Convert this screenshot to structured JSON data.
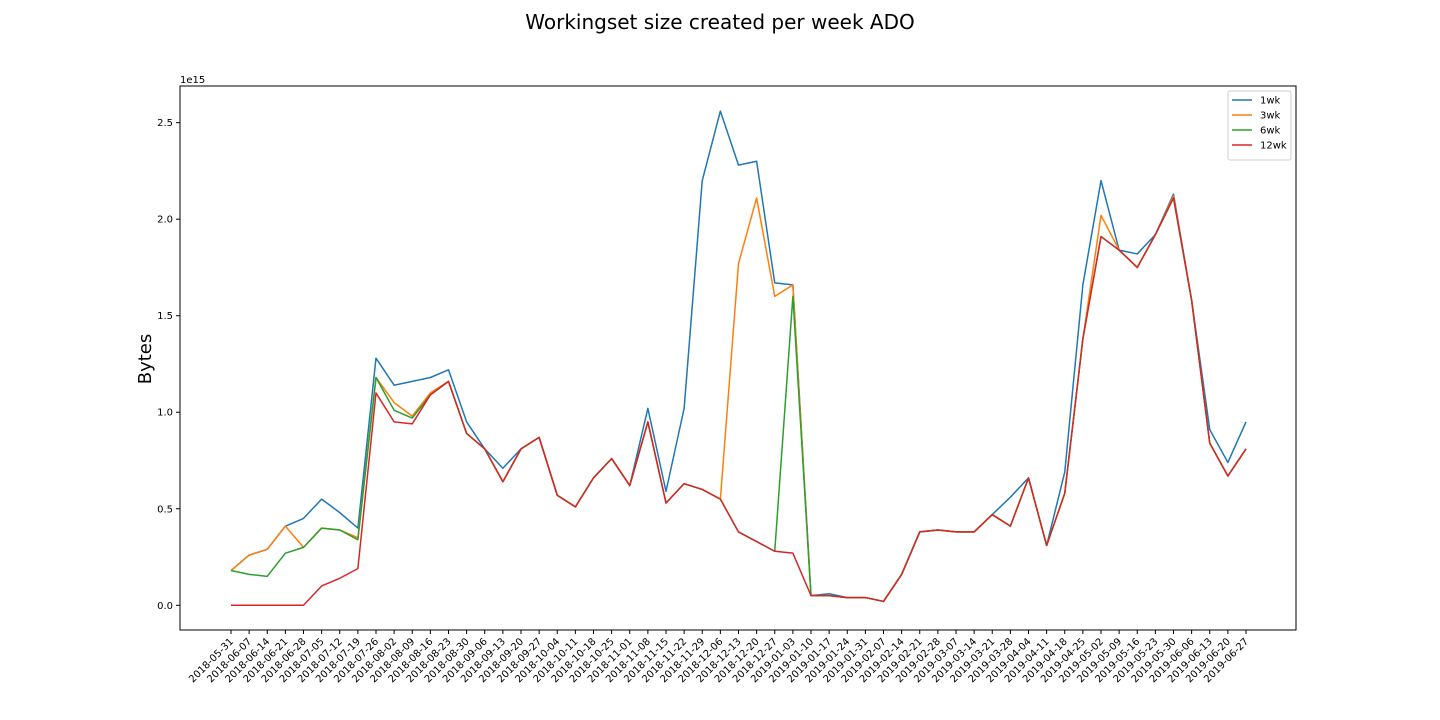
{
  "chart_data": {
    "type": "line",
    "title": "Workingset size created per week ADO",
    "xlabel": "",
    "ylabel": "Bytes",
    "y_offset_text": "1e15",
    "ylim": [
      -0.128,
      2.69
    ],
    "yticks": [
      0.0,
      0.5,
      1.0,
      1.5,
      2.0,
      2.5
    ],
    "ytick_labels": [
      "0.0",
      "0.5",
      "1.0",
      "1.5",
      "2.0",
      "2.5"
    ],
    "grid": false,
    "legend_position": "top-right",
    "categories": [
      "2018-05-31",
      "2018-06-07",
      "2018-06-14",
      "2018-06-21",
      "2018-06-28",
      "2018-07-05",
      "2018-07-12",
      "2018-07-19",
      "2018-07-26",
      "2018-08-02",
      "2018-08-09",
      "2018-08-16",
      "2018-08-23",
      "2018-08-30",
      "2018-09-06",
      "2018-09-13",
      "2018-09-20",
      "2018-09-27",
      "2018-10-04",
      "2018-10-11",
      "2018-10-18",
      "2018-10-25",
      "2018-11-01",
      "2018-11-08",
      "2018-11-15",
      "2018-11-22",
      "2018-11-29",
      "2018-12-06",
      "2018-12-13",
      "2018-12-20",
      "2018-12-27",
      "2019-01-03",
      "2019-01-10",
      "2019-01-17",
      "2019-01-24",
      "2019-01-31",
      "2019-02-07",
      "2019-02-14",
      "2019-02-21",
      "2019-02-28",
      "2019-03-07",
      "2019-03-14",
      "2019-03-21",
      "2019-03-28",
      "2019-04-04",
      "2019-04-11",
      "2019-04-18",
      "2019-04-25",
      "2019-05-02",
      "2019-05-09",
      "2019-05-16",
      "2019-05-23",
      "2019-05-30",
      "2019-06-06",
      "2019-06-13",
      "2019-06-20",
      "2019-06-27"
    ],
    "series": [
      {
        "name": "1wk",
        "color": "#1f77b4",
        "values": [
          0.18,
          0.26,
          0.29,
          0.41,
          0.45,
          0.55,
          0.48,
          0.4,
          1.28,
          1.14,
          1.16,
          1.18,
          1.22,
          0.95,
          0.81,
          0.71,
          0.81,
          0.87,
          0.57,
          0.51,
          0.66,
          0.76,
          0.62,
          1.02,
          0.59,
          1.02,
          2.2,
          2.56,
          2.28,
          2.3,
          1.67,
          1.66,
          0.05,
          0.06,
          0.04,
          0.04,
          0.02,
          0.16,
          0.38,
          0.39,
          0.38,
          0.38,
          0.47,
          0.56,
          0.66,
          0.31,
          0.69,
          1.66,
          2.2,
          1.84,
          1.82,
          1.92,
          2.13,
          1.58,
          0.91,
          0.74,
          0.95
        ]
      },
      {
        "name": "3wk",
        "color": "#ff7f0e",
        "values": [
          0.18,
          0.26,
          0.29,
          0.41,
          0.3,
          0.4,
          0.39,
          0.35,
          1.18,
          1.05,
          0.98,
          1.1,
          1.16,
          0.89,
          0.81,
          0.64,
          0.81,
          0.87,
          0.57,
          0.51,
          0.66,
          0.76,
          0.62,
          0.95,
          0.53,
          0.63,
          0.6,
          0.55,
          1.77,
          2.11,
          1.6,
          1.66,
          0.05,
          0.05,
          0.04,
          0.04,
          0.02,
          0.16,
          0.38,
          0.39,
          0.38,
          0.38,
          0.47,
          0.41,
          0.66,
          0.31,
          0.58,
          1.38,
          2.02,
          1.84,
          1.75,
          1.92,
          2.12,
          1.58,
          0.84,
          0.67,
          0.81
        ]
      },
      {
        "name": "6wk",
        "color": "#2ca02c",
        "values": [
          0.18,
          0.16,
          0.15,
          0.27,
          0.3,
          0.4,
          0.39,
          0.34,
          1.18,
          1.01,
          0.97,
          1.09,
          1.16,
          0.89,
          0.81,
          0.64,
          0.81,
          0.87,
          0.57,
          0.51,
          0.66,
          0.76,
          0.62,
          0.95,
          0.53,
          0.63,
          0.6,
          0.55,
          0.38,
          0.33,
          0.28,
          1.6,
          0.05,
          0.05,
          0.04,
          0.04,
          0.02,
          0.16,
          0.38,
          0.39,
          0.38,
          0.38,
          0.47,
          0.41,
          0.66,
          0.31,
          0.58,
          1.38,
          1.91,
          1.84,
          1.75,
          1.92,
          2.11,
          1.58,
          0.84,
          0.67,
          0.81
        ]
      },
      {
        "name": "12wk",
        "color": "#d62728",
        "values": [
          0.0,
          0.0,
          0.0,
          0.0,
          0.0,
          0.1,
          0.14,
          0.19,
          1.1,
          0.95,
          0.94,
          1.09,
          1.16,
          0.89,
          0.81,
          0.64,
          0.81,
          0.87,
          0.57,
          0.51,
          0.66,
          0.76,
          0.62,
          0.95,
          0.53,
          0.63,
          0.6,
          0.55,
          0.38,
          0.33,
          0.28,
          0.27,
          0.05,
          0.05,
          0.04,
          0.04,
          0.02,
          0.16,
          0.38,
          0.39,
          0.38,
          0.38,
          0.47,
          0.41,
          0.66,
          0.31,
          0.58,
          1.38,
          1.91,
          1.84,
          1.75,
          1.92,
          2.11,
          1.58,
          0.84,
          0.67,
          0.81
        ]
      }
    ]
  }
}
